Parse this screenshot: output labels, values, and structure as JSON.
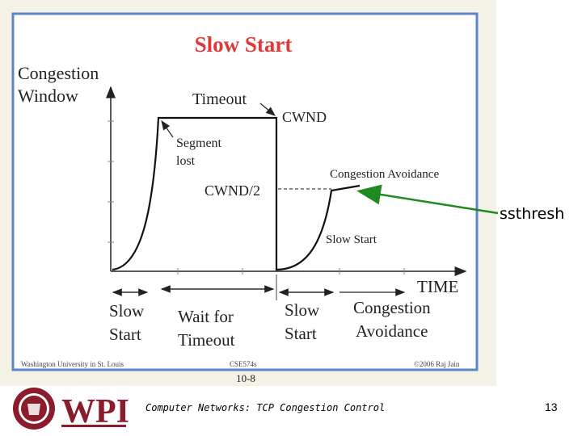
{
  "slide": {
    "title": "Slow Start",
    "y_axis_label_line1": "Congestion",
    "y_axis_label_line2": "Window",
    "x_axis_label": "TIME",
    "annotations": {
      "timeout": "Timeout",
      "cwnd": "CWND",
      "segment_lost_line1": "Segment",
      "segment_lost_line2": "lost",
      "cwnd_half": "CWND/2",
      "congestion_avoidance_top": "Congestion Avoidance",
      "slow_start_right": "Slow Start"
    },
    "phases": [
      {
        "line1": "Slow",
        "line2": "Start"
      },
      {
        "line1": "Wait for",
        "line2": "Timeout"
      },
      {
        "line1": "Slow",
        "line2": "Start"
      },
      {
        "line1": "Congestion",
        "line2": "Avoidance"
      }
    ],
    "bottom_left": "Washington University in St. Louis",
    "bottom_center": "CSE574s",
    "bottom_right": "©2006 Raj Jain",
    "slide_number": "10-8"
  },
  "overlay": {
    "ssthresh_label": "ssthresh",
    "arrow_color": "#1f8a1f"
  },
  "logo": {
    "text": "WPI",
    "seal_text": "WORCESTER POLYTECHNIC INSTITUTE",
    "year": "1865",
    "brand_color": "#8a1c2b"
  },
  "footer": {
    "course_text": "Computer Networks: TCP Congestion Control",
    "page_number": "13"
  }
}
